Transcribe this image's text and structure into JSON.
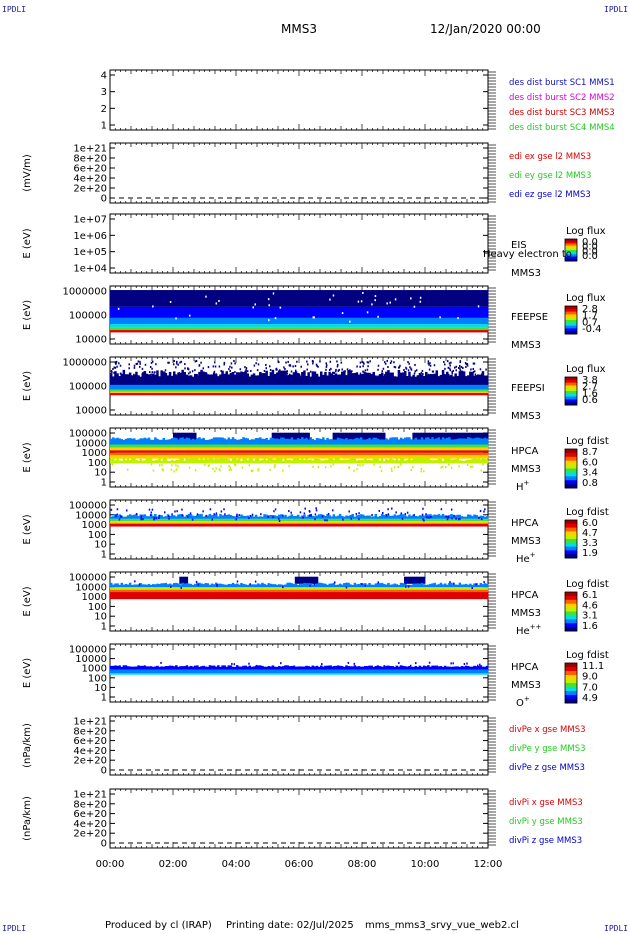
{
  "corners": {
    "tl": "IPDLI",
    "tr": "IPDLI",
    "bl": "IPDLI",
    "br": "IPDLI"
  },
  "header": {
    "spacecraft": "MMS3",
    "datetime": "12/Jan/2020 00:00"
  },
  "footer": {
    "produced_by": "Produced by cl (IRAP)",
    "printing_date": "Printing date: 02/Jul/2025",
    "file": "mms_mms3_srvy_vue_web2.cl"
  },
  "colors": {
    "red": "#dd0000",
    "green": "#22cc22",
    "blue": "#0000cc",
    "magenta": "#dd00dd",
    "colormap": [
      "#ffffff",
      "#000080",
      "#0000ff",
      "#0080ff",
      "#00e0e0",
      "#40e040",
      "#c0f000",
      "#ffd000",
      "#ff6000",
      "#e00000",
      "#a00000"
    ]
  },
  "chart_data": [
    {
      "id": "p1",
      "type": "line",
      "ylabel": "",
      "yticks": [
        "1",
        "2",
        "3",
        "4"
      ],
      "ylim": [
        1,
        4
      ],
      "legend": [
        {
          "text": "des dist burst SC1 MMS1",
          "color": "#1010c0"
        },
        {
          "text": "des dist burst SC2 MMS2",
          "color": "#dd00dd"
        },
        {
          "text": "des dist burst SC3 MMS3",
          "color": "#cc0000"
        },
        {
          "text": "des dist burst SC4 MMS4",
          "color": "#22cc22"
        }
      ]
    },
    {
      "id": "p2",
      "type": "line",
      "ylabel": "(mV/m)",
      "yticks": [
        "0",
        "2e+20",
        "4e+20",
        "6e+20",
        "8e+20",
        "1e+21"
      ],
      "ylim": [
        0,
        1e+21
      ],
      "zero_line": true,
      "legend": [
        {
          "text": "edi ex gse l2 MMS3",
          "color": "#dd0000"
        },
        {
          "text": "edi ey gse l2 MMS3",
          "color": "#22cc22"
        },
        {
          "text": "edi ez gse l2 MMS3",
          "color": "#0000cc"
        }
      ]
    },
    {
      "id": "p3",
      "type": "heatmap",
      "ylabel": "E (eV)",
      "yticks": [
        "1e+04",
        "1e+05",
        "1e+06",
        "1e+07"
      ],
      "ylim": [
        10000.0,
        10000000.0
      ],
      "log_y": true,
      "side_labels": [
        "EIS",
        "MMS3"
      ],
      "overlay": "Heavy electron to",
      "cb_title": "Log flux",
      "cb_ticks": [
        "0.0",
        "0.0",
        "0.0",
        "0.0"
      ]
    },
    {
      "id": "p4",
      "type": "heatmap",
      "ylabel": "E (eV)",
      "yticks": [
        "10000",
        "100000",
        "1000000"
      ],
      "ylim": [
        10000.0,
        1000000.0
      ],
      "log_y": true,
      "side_labels": [
        "FEEPSE",
        "MMS3"
      ],
      "cb_title": "Log flux",
      "cb_ticks": [
        "2.8",
        "1.7",
        "0.7",
        "-0.4"
      ]
    },
    {
      "id": "p5",
      "type": "heatmap",
      "ylabel": "E (eV)",
      "yticks": [
        "10000",
        "100000",
        "1000000"
      ],
      "ylim": [
        10000.0,
        1000000.0
      ],
      "log_y": true,
      "side_labels": [
        "FEEPSI",
        "MMS3"
      ],
      "cb_title": "Log flux",
      "cb_ticks": [
        "3.8",
        "2.7",
        "1.6",
        "0.6"
      ]
    },
    {
      "id": "p6",
      "type": "heatmap",
      "ylabel": "E (eV)",
      "yticks": [
        "1",
        "10",
        "100",
        "1000",
        "10000",
        "100000"
      ],
      "ylim": [
        1,
        100000.0
      ],
      "log_y": true,
      "side_labels": [
        "HPCA",
        "MMS3",
        "H+"
      ],
      "cb_title": "Log fdist",
      "cb_ticks": [
        "8.7",
        "6.0",
        "3.4",
        "0.8"
      ]
    },
    {
      "id": "p7",
      "type": "heatmap",
      "ylabel": "E (eV)",
      "yticks": [
        "1",
        "10",
        "100",
        "1000",
        "10000",
        "100000"
      ],
      "ylim": [
        1,
        100000.0
      ],
      "log_y": true,
      "side_labels": [
        "HPCA",
        "MMS3",
        "He+"
      ],
      "cb_title": "Log fdist",
      "cb_ticks": [
        "6.0",
        "4.7",
        "3.3",
        "1.9"
      ]
    },
    {
      "id": "p8",
      "type": "heatmap",
      "ylabel": "E (eV)",
      "yticks": [
        "1",
        "10",
        "100",
        "1000",
        "10000",
        "100000"
      ],
      "ylim": [
        1,
        100000.0
      ],
      "log_y": true,
      "side_labels": [
        "HPCA",
        "MMS3",
        "He++"
      ],
      "cb_title": "Log fdist",
      "cb_ticks": [
        "6.1",
        "4.6",
        "3.1",
        "1.6"
      ]
    },
    {
      "id": "p9",
      "type": "heatmap",
      "ylabel": "E (eV)",
      "yticks": [
        "1",
        "10",
        "100",
        "1000",
        "10000",
        "100000"
      ],
      "ylim": [
        1,
        100000.0
      ],
      "log_y": true,
      "side_labels": [
        "HPCA",
        "MMS3",
        "O+"
      ],
      "cb_title": "Log fdist",
      "cb_ticks": [
        "11.1",
        "9.0",
        "7.0",
        "4.9"
      ]
    },
    {
      "id": "p10",
      "type": "line",
      "ylabel": "(nPa/km)",
      "yticks": [
        "0",
        "2e+20",
        "4e+20",
        "6e+20",
        "8e+20",
        "1e+21"
      ],
      "ylim": [
        0,
        1e+21
      ],
      "zero_line": true,
      "legend": [
        {
          "text": "divPe x gse MMS3",
          "color": "#dd0000"
        },
        {
          "text": "divPe y gse MMS3",
          "color": "#22cc22"
        },
        {
          "text": "divPe z gse MMS3",
          "color": "#0000cc"
        }
      ]
    },
    {
      "id": "p11",
      "type": "line",
      "ylabel": "(nPa/km)",
      "yticks": [
        "0",
        "2e+20",
        "4e+20",
        "6e+20",
        "8e+20",
        "1e+21"
      ],
      "ylim": [
        0,
        1e+21
      ],
      "zero_line": true,
      "legend": [
        {
          "text": "divPi x gse MMS3",
          "color": "#dd0000"
        },
        {
          "text": "divPi y gse MMS3",
          "color": "#22cc22"
        },
        {
          "text": "divPi z gse MMS3",
          "color": "#0000cc"
        }
      ]
    }
  ],
  "xaxis": {
    "ticks": [
      "00:00",
      "02:00",
      "04:00",
      "06:00",
      "08:00",
      "10:00",
      "12:00"
    ]
  }
}
